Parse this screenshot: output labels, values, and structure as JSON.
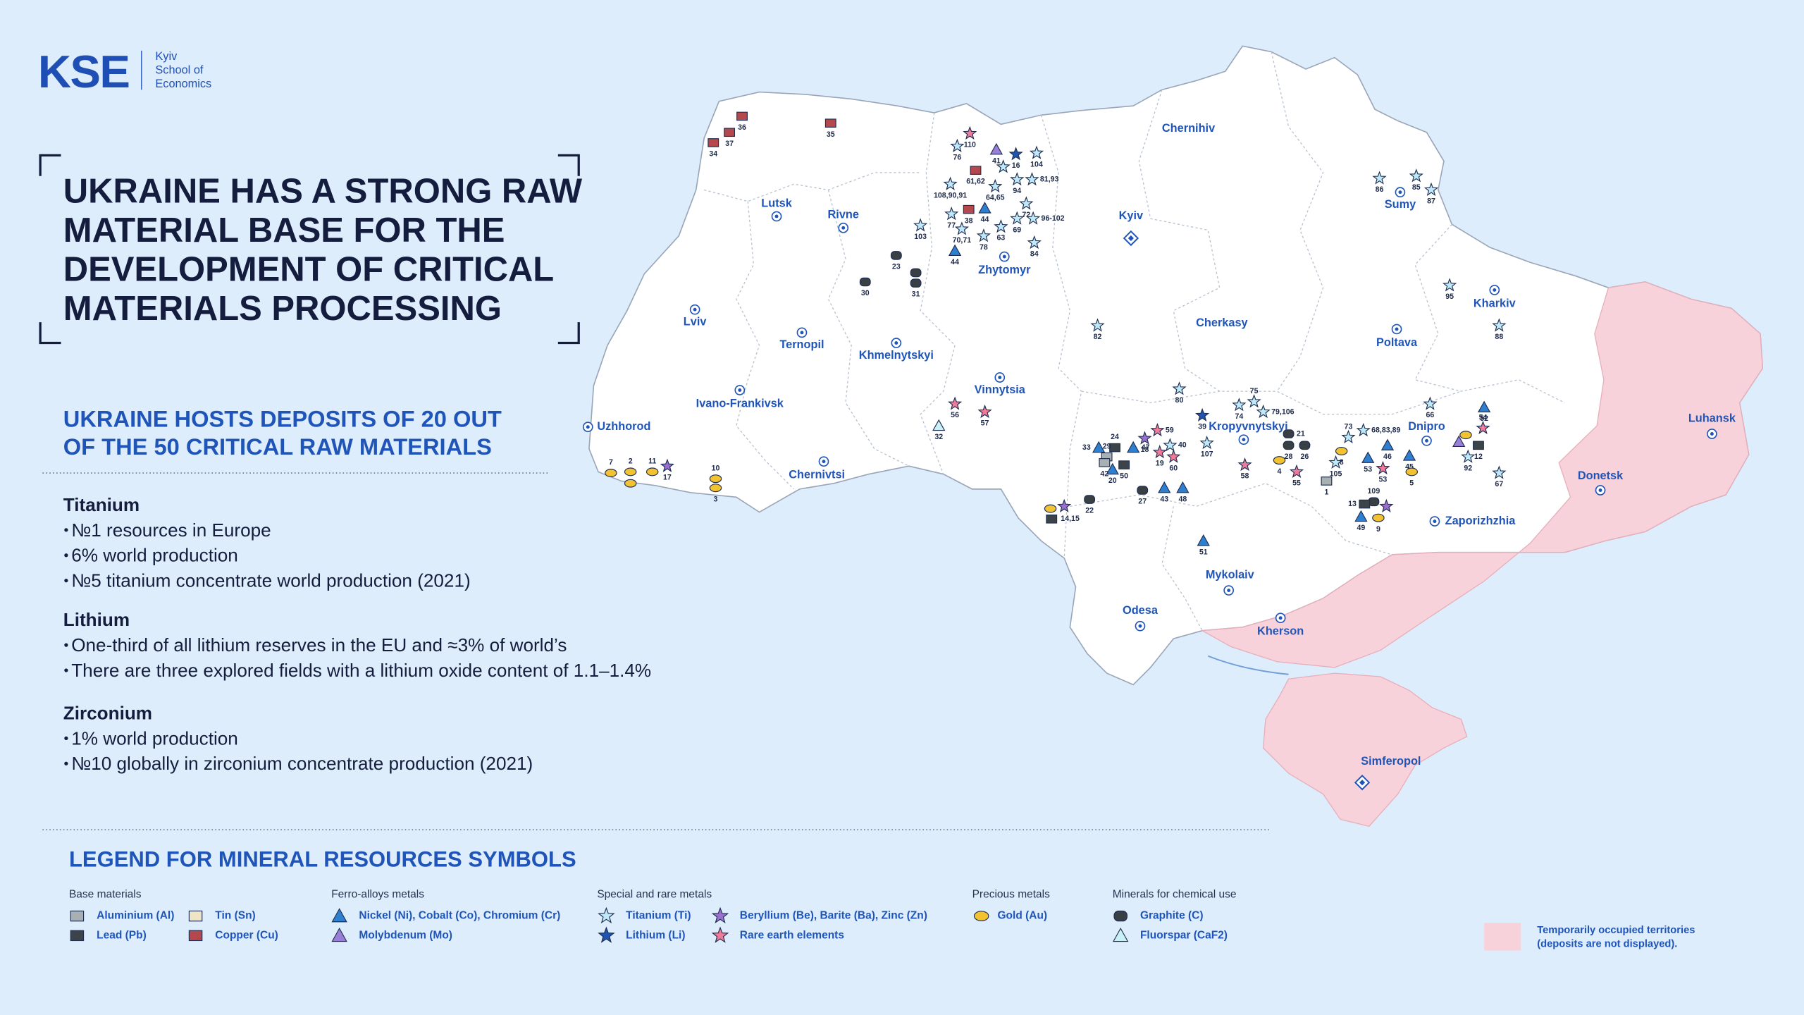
{
  "header": {
    "logo": "KSE",
    "logo_subtitle": [
      "Kyiv",
      "School of",
      "Economics"
    ]
  },
  "title": [
    "UKRAINE HAS A STRONG RAW",
    "MATERIAL BASE FOR THE",
    "DEVELOPMENT OF CRITICAL",
    "MATERIALS PROCESSING"
  ],
  "subtitle": [
    "UKRAINE HOSTS DEPOSITS OF 20 OUT",
    "OF THE 50 CRITICAL RAW MATERIALS"
  ],
  "facts": [
    {
      "heading": "Titanium",
      "bullets": [
        "№1 resources in Europe",
        "6% world production",
        "№5 titanium concentrate world production (2021)"
      ]
    },
    {
      "heading": "Lithium",
      "bullets": [
        "One-third of all lithium reserves in the EU and ≈3% of world’s",
        "There are three explored fields with a lithium oxide content of 1.1–1.4%"
      ]
    },
    {
      "heading": "Zirconium",
      "bullets": [
        "1% world production",
        "№10 globally in zirconium concentrate production (2021)"
      ]
    }
  ],
  "legend": {
    "title": "LEGEND FOR MINERAL RESOURCES SYMBOLS",
    "groups": [
      {
        "heading": "Base materials",
        "items": [
          "Aluminium (Al)",
          "Lead (Pb)",
          "Tin (Sn)",
          "Copper (Cu)"
        ]
      },
      {
        "heading": "Ferro-alloys metals",
        "items": [
          "Nickel (Ni), Cobalt (Co), Chromium (Cr)",
          "Molybdenum (Mo)"
        ]
      },
      {
        "heading": "Special and rare metals",
        "items": [
          "Titanium (Ti)",
          "Lithium (Li)",
          "Beryllium (Be), Barite (Ba), Zinc (Zn)",
          "Rare earth elements"
        ]
      },
      {
        "heading": "Precious metals",
        "items": [
          "Gold (Au)"
        ]
      },
      {
        "heading": "Minerals for chemical use",
        "items": [
          "Graphite (C)",
          "Fluorspar (CaF2)"
        ]
      }
    ]
  },
  "note": [
    "Temporarily occupied territories",
    "(deposits are not displayed)."
  ],
  "cities": [
    "Lutsk",
    "Rivne",
    "Lviv",
    "Ternopil",
    "Khmelnytskyi",
    "Ivano-Frankivsk",
    "Uzhhorod",
    "Chernivtsi",
    "Vinnytsia",
    "Zhytomyr",
    "Kyiv",
    "Chernihiv",
    "Sumy",
    "Kharkiv",
    "Poltava",
    "Cherkasy",
    "Kropyvnytskyi",
    "Dnipro",
    "Zaporizhzhia",
    "Donetsk",
    "Luhansk",
    "Mykolaiv",
    "Kherson",
    "Odesa",
    "Simferopol"
  ],
  "deposits": [
    "36",
    "37",
    "34",
    "35",
    "110",
    "76",
    "41",
    "16",
    "104",
    "61,62",
    "94",
    "81,93",
    "64,65",
    "108,90,91",
    "72",
    "38",
    "44",
    "69",
    "96-102",
    "77",
    "70,71",
    "78",
    "63",
    "84",
    "44",
    "103",
    "23",
    "25",
    "31",
    "30",
    "86",
    "85",
    "87",
    "95",
    "88",
    "82",
    "80",
    "75",
    "74",
    "79,106",
    "39",
    "107",
    "59",
    "18",
    "47",
    "24",
    "29",
    "33",
    "42",
    "50",
    "20",
    "40",
    "19",
    "60",
    "27",
    "43",
    "48",
    "58",
    "21",
    "28",
    "26",
    "4",
    "55",
    "22",
    "14,15",
    "56",
    "57",
    "32",
    "73",
    "68,83,89",
    "66",
    "52",
    "54",
    "12",
    "92",
    "67",
    "46",
    "53",
    "53",
    "45",
    "5",
    "1",
    "105",
    "8",
    "109",
    "13",
    "49",
    "9",
    "51",
    "7",
    "2",
    "11",
    "17",
    "10",
    "3"
  ]
}
